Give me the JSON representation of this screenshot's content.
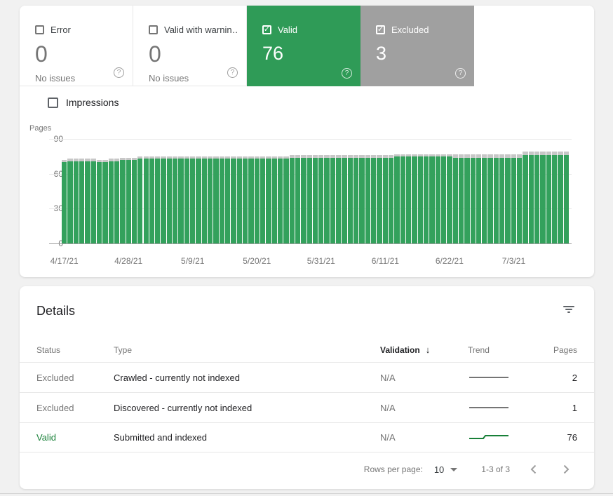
{
  "colors": {
    "valid_green": "#2f9b57",
    "bar_green": "#33a15c",
    "excluded_gray": "#a0a0a0",
    "bar_cap_gray": "#c7c7c7",
    "trend_gray": "#757575",
    "trend_green": "#188038"
  },
  "summary_cards": [
    {
      "id": "error",
      "label": "Error",
      "value": "0",
      "sub": "No issues",
      "checked": false
    },
    {
      "id": "valid-with-warnings",
      "label": "Valid with warnin…",
      "value": "0",
      "sub": "No issues",
      "checked": false
    },
    {
      "id": "valid",
      "label": "Valid",
      "value": "76",
      "checked": true,
      "bg": "#2f9b57"
    },
    {
      "id": "excluded",
      "label": "Excluded",
      "value": "3",
      "checked": true,
      "bg": "#a0a0a0"
    }
  ],
  "impressions_toggle": {
    "label": "Impressions",
    "checked": false
  },
  "chart_data": {
    "type": "bar",
    "stacked": true,
    "ylabel": "Pages",
    "ylim": [
      0,
      90
    ],
    "yticks": [
      0,
      30,
      60,
      90
    ],
    "grid": true,
    "x_ticks": [
      {
        "index": 0,
        "label": "4/17/21"
      },
      {
        "index": 11,
        "label": "4/28/21"
      },
      {
        "index": 22,
        "label": "5/9/21"
      },
      {
        "index": 33,
        "label": "5/20/21"
      },
      {
        "index": 44,
        "label": "5/31/21"
      },
      {
        "index": 55,
        "label": "6/11/21"
      },
      {
        "index": 66,
        "label": "6/22/21"
      },
      {
        "index": 77,
        "label": "7/3/21"
      }
    ],
    "series": [
      {
        "name": "Valid",
        "color": "#33a15c",
        "values": [
          70,
          71,
          71,
          71,
          71,
          71,
          70,
          70,
          71,
          71,
          72,
          72,
          72,
          73,
          73,
          73,
          73,
          73,
          73,
          73,
          73,
          73,
          73,
          73,
          73,
          73,
          73,
          73,
          73,
          73,
          73,
          73,
          73,
          73,
          73,
          73,
          73,
          73,
          73,
          74,
          74,
          74,
          74,
          74,
          74,
          74,
          74,
          74,
          74,
          74,
          74,
          74,
          74,
          74,
          74,
          74,
          74,
          75,
          75,
          75,
          75,
          75,
          75,
          75,
          75,
          75,
          75,
          74,
          74,
          74,
          74,
          74,
          74,
          74,
          74,
          74,
          74,
          74,
          74,
          76,
          76,
          76,
          76,
          76,
          76,
          76,
          76
        ]
      },
      {
        "name": "Excluded",
        "color": "#c7c7c7",
        "values": [
          2,
          2,
          2,
          2,
          2,
          2,
          2,
          2,
          2,
          2,
          2,
          2,
          2,
          2,
          2,
          2,
          2,
          2,
          2,
          2,
          2,
          2,
          2,
          2,
          2,
          2,
          2,
          2,
          2,
          2,
          2,
          2,
          2,
          2,
          2,
          2,
          2,
          2,
          2,
          2,
          2,
          2,
          2,
          2,
          2,
          2,
          2,
          2,
          2,
          2,
          2,
          2,
          2,
          2,
          2,
          2,
          2,
          2,
          2,
          2,
          2,
          2,
          2,
          2,
          2,
          2,
          2,
          3,
          3,
          3,
          3,
          3,
          3,
          3,
          3,
          3,
          3,
          3,
          3,
          3,
          3,
          3,
          3,
          3,
          3,
          3,
          3
        ]
      }
    ]
  },
  "details": {
    "title": "Details",
    "columns": [
      "Status",
      "Type",
      "Validation",
      "Trend",
      "Pages"
    ],
    "sorted_column": "Validation",
    "sort_direction": "desc",
    "sort_icon": "↓",
    "rows": [
      {
        "status": "Excluded",
        "type": "Crawled - currently not indexed",
        "validation": "N/A",
        "trend": "flat",
        "pages": "2"
      },
      {
        "status": "Excluded",
        "type": "Discovered - currently not indexed",
        "validation": "N/A",
        "trend": "flat",
        "pages": "1"
      },
      {
        "status": "Valid",
        "type": "Submitted and indexed",
        "validation": "N/A",
        "trend": "step_up",
        "pages": "76"
      }
    ],
    "footer": {
      "rows_per_page_label": "Rows per page:",
      "rows_per_page_value": "10",
      "range_label": "1-3 of 3"
    }
  }
}
